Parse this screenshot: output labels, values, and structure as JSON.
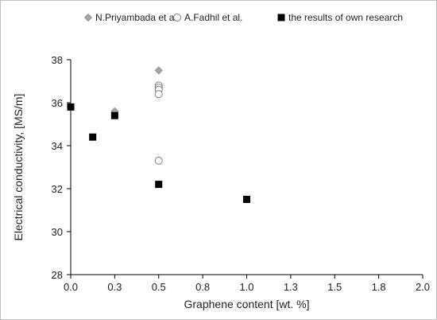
{
  "chart_data": {
    "type": "scatter",
    "title": "",
    "xlabel": "Graphene content [wt. %]",
    "ylabel": "Electrical conductivity, [MS/m]",
    "xlim": [
      0.0,
      2.0
    ],
    "ylim": [
      28,
      38
    ],
    "x_ticks": [
      0.0,
      0.25,
      0.5,
      0.75,
      1.0,
      1.25,
      1.5,
      1.75,
      2.0
    ],
    "x_tick_labels": [
      "0.0",
      "0.3",
      "0.5",
      "0.8",
      "1.0",
      "1.3",
      "1.5",
      "1.8",
      "2.0"
    ],
    "y_ticks": [
      28,
      30,
      32,
      34,
      36,
      38
    ],
    "y_tick_labels": [
      "28",
      "30",
      "32",
      "34",
      "36",
      "38"
    ],
    "grid": false,
    "legend_position": "top",
    "series": [
      {
        "name": "N.Priyambada et al.",
        "marker": "diamond",
        "color": "#a6a6a6",
        "points": [
          {
            "x": 0.0,
            "y": 35.8
          },
          {
            "x": 0.25,
            "y": 35.6
          },
          {
            "x": 0.5,
            "y": 37.5
          }
        ]
      },
      {
        "name": "A.Fadhil et al.",
        "marker": "circle-open",
        "color": "#7f7f7f",
        "points": [
          {
            "x": 0.5,
            "y": 36.8
          },
          {
            "x": 0.5,
            "y": 36.7
          },
          {
            "x": 0.5,
            "y": 36.6
          },
          {
            "x": 0.5,
            "y": 36.4
          },
          {
            "x": 0.5,
            "y": 33.3
          }
        ]
      },
      {
        "name": "the results of own research",
        "marker": "square",
        "color": "#000000",
        "points": [
          {
            "x": 0.0,
            "y": 35.8
          },
          {
            "x": 0.125,
            "y": 34.4
          },
          {
            "x": 0.25,
            "y": 35.4
          },
          {
            "x": 0.5,
            "y": 32.2
          },
          {
            "x": 1.0,
            "y": 31.5
          }
        ]
      }
    ]
  }
}
